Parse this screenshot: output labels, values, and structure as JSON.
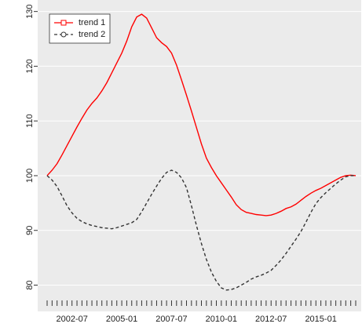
{
  "chart_data": {
    "type": "line",
    "categories": [
      null,
      null,
      null,
      null,
      null,
      "2002-07",
      null,
      null,
      null,
      null,
      null,
      null,
      null,
      null,
      null,
      "2005-01",
      null,
      null,
      null,
      null,
      null,
      null,
      null,
      null,
      null,
      "2007-07",
      null,
      null,
      null,
      null,
      null,
      null,
      null,
      null,
      null,
      "2010-01",
      null,
      null,
      null,
      null,
      null,
      null,
      null,
      null,
      null,
      "2012-07",
      null,
      null,
      null,
      null,
      null,
      null,
      null,
      null,
      null,
      "2015-01",
      null,
      null,
      null,
      null,
      null,
      null,
      null
    ],
    "series": [
      {
        "name": "trend 1",
        "color": "#ff0000",
        "dash": false,
        "marker": "square",
        "values": [
          100,
          101,
          102.2,
          103.8,
          105.5,
          107.2,
          108.9,
          110.5,
          112,
          113.2,
          114.2,
          115.5,
          117,
          118.8,
          120.6,
          122.4,
          124.6,
          127.2,
          129,
          129.5,
          128.8,
          127,
          125.2,
          124.3,
          123.6,
          122.4,
          120.2,
          117.5,
          114.7,
          111.8,
          108.8,
          105.8,
          103.2,
          101.5,
          100,
          98.7,
          97.4,
          96.1,
          94.7,
          93.8,
          93.3,
          93.1,
          92.9,
          92.8,
          92.7,
          92.8,
          93.1,
          93.5,
          94,
          94.3,
          94.8,
          95.5,
          96.2,
          96.8,
          97.3,
          97.7,
          98.2,
          98.7,
          99.2,
          99.7,
          100,
          100.1,
          100
        ]
      },
      {
        "name": "trend 2",
        "color": "#333333",
        "dash": true,
        "marker": "circle",
        "values": [
          100,
          99.2,
          98,
          96.3,
          94.5,
          93.2,
          92.2,
          91.6,
          91.2,
          90.9,
          90.7,
          90.5,
          90.4,
          90.3,
          90.5,
          90.8,
          91.1,
          91.4,
          92,
          93.4,
          95,
          96.6,
          98.1,
          99.5,
          100.6,
          101,
          100.6,
          99.6,
          97.8,
          94.5,
          90.9,
          87.6,
          84.7,
          82.4,
          80.7,
          79.5,
          79.1,
          79.2,
          79.5,
          80,
          80.5,
          81.1,
          81.5,
          81.8,
          82.2,
          82.7,
          83.6,
          84.6,
          85.8,
          87.1,
          88.4,
          89.8,
          91.5,
          93.3,
          94.9,
          96,
          96.9,
          97.7,
          98.5,
          99.2,
          99.8,
          100,
          100
        ]
      }
    ],
    "ylim": [
      75.2,
      132.1
    ],
    "yticks": [
      80,
      90,
      100,
      110,
      120,
      130
    ],
    "grid": true,
    "legend": "topleft"
  }
}
